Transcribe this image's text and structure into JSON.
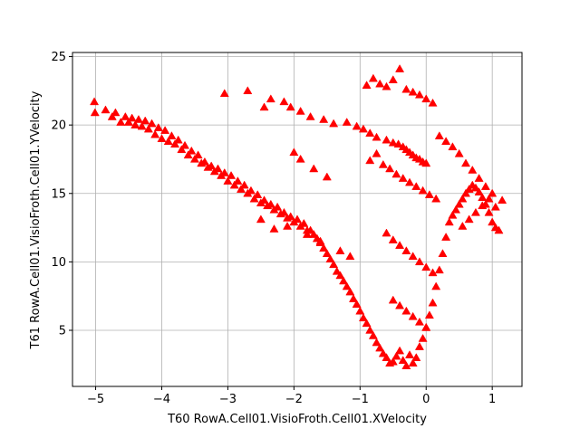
{
  "chart_data": {
    "type": "scatter",
    "title": "",
    "xlabel": "T60 RowA.Cell01.VisioFroth.Cell01.XVelocity",
    "ylabel": "T61 RowA.Cell01.VisioFroth.Cell01.YVelocity",
    "xlim": [
      -5.35,
      1.45
    ],
    "ylim": [
      0.9,
      25.3
    ],
    "xticks": [
      -5,
      -4,
      -3,
      -2,
      -1,
      0,
      1
    ],
    "xtick_labels": [
      "−5",
      "−4",
      "−3",
      "−2",
      "−1",
      "0",
      "1"
    ],
    "yticks": [
      5,
      10,
      15,
      20,
      25
    ],
    "ytick_labels": [
      "5",
      "10",
      "15",
      "20",
      "25"
    ],
    "grid": true,
    "legend": "none",
    "marker": "triangle-up",
    "color": "#ff0000",
    "series": [
      {
        "x": [
          -5.02,
          -5.01,
          -4.85,
          -4.75,
          -4.7,
          -4.62,
          -4.55,
          -4.5,
          -4.45,
          -4.4,
          -4.35,
          -4.3,
          -4.25,
          -4.2,
          -4.15,
          -4.1,
          -4.05,
          -4.0,
          -3.95,
          -3.9,
          -3.85,
          -3.8,
          -3.75,
          -3.7,
          -3.65,
          -3.6,
          -3.55,
          -3.5,
          -3.45,
          -3.4,
          -3.35,
          -3.3,
          -3.25,
          -3.2,
          -3.15,
          -3.1,
          -3.05,
          -3.0,
          -2.95,
          -2.9,
          -2.85,
          -2.8,
          -2.75,
          -2.7,
          -2.65,
          -2.6,
          -2.55,
          -2.5,
          -2.45,
          -2.4,
          -2.35,
          -2.3,
          -2.25,
          -2.2,
          -2.15,
          -2.1,
          -2.05,
          -2.0,
          -1.95,
          -1.9,
          -1.85,
          -1.8,
          -1.75,
          -1.7,
          -1.65,
          -1.6,
          -1.55,
          -1.5,
          -1.45,
          -1.4,
          -1.35,
          -1.3,
          -1.25,
          -1.2,
          -1.15,
          -1.1,
          -1.05,
          -1.0,
          -0.95,
          -0.9,
          -0.85,
          -0.8,
          -0.75,
          -0.7,
          -0.65,
          -0.6,
          -0.55,
          -0.5,
          -0.45,
          -0.4,
          -0.35,
          -0.3,
          -0.25,
          -0.2,
          -0.15,
          -0.1,
          -0.05,
          0.0,
          0.05,
          0.1,
          0.15,
          0.2,
          0.25,
          0.3,
          0.35,
          0.4,
          0.45,
          0.5,
          0.55,
          0.6,
          0.65,
          0.7,
          0.75,
          0.8,
          0.85,
          0.9,
          0.95,
          1.0,
          1.05,
          1.1,
          1.15,
          -3.05,
          -2.7,
          -2.45,
          -2.35,
          -2.15,
          -2.05,
          -1.9,
          -1.75,
          -1.55,
          -1.4,
          -1.2,
          -1.05,
          -0.95,
          -0.85,
          -0.75,
          -0.6,
          -0.5,
          -0.42,
          -0.35,
          -0.3,
          -0.25,
          -0.2,
          -0.15,
          -0.1,
          -0.05,
          0.0,
          -0.9,
          -0.8,
          -0.7,
          -0.6,
          -0.5,
          -0.4,
          -0.3,
          -0.2,
          -0.1,
          0.0,
          0.1,
          -0.85,
          -0.75,
          -0.65,
          -0.55,
          -0.45,
          -0.35,
          -0.25,
          -0.15,
          -0.05,
          0.05,
          0.15,
          -0.6,
          -0.5,
          -0.4,
          -0.3,
          -0.2,
          -0.1,
          0.0,
          0.1,
          -0.5,
          -0.4,
          -0.3,
          -0.2,
          -0.1,
          0.0,
          0.2,
          0.3,
          0.4,
          0.5,
          0.6,
          0.7,
          0.8,
          0.9,
          1.0,
          0.55,
          0.65,
          0.75,
          0.85,
          0.95,
          1.05,
          -2.5,
          -2.3,
          -2.1,
          -1.8,
          -1.6,
          -1.3,
          -1.15,
          -2.0,
          -1.9,
          -1.7,
          -1.5
        ],
        "y": [
          21.7,
          20.9,
          21.1,
          20.6,
          20.9,
          20.2,
          20.6,
          20.2,
          20.5,
          20.0,
          20.4,
          19.9,
          20.3,
          19.7,
          20.1,
          19.3,
          19.8,
          19.0,
          19.6,
          18.8,
          19.2,
          18.6,
          18.9,
          18.2,
          18.5,
          17.8,
          18.1,
          17.5,
          17.8,
          17.2,
          17.3,
          16.9,
          17.0,
          16.6,
          16.8,
          16.3,
          16.5,
          15.9,
          16.3,
          15.6,
          15.9,
          15.3,
          15.6,
          15.0,
          15.2,
          14.6,
          14.9,
          14.3,
          14.5,
          14.1,
          14.2,
          13.8,
          14.0,
          13.5,
          13.6,
          13.2,
          13.3,
          12.9,
          13.1,
          12.6,
          12.8,
          12.3,
          12.3,
          12.0,
          11.7,
          11.4,
          11.0,
          10.6,
          10.2,
          9.8,
          9.3,
          9.0,
          8.6,
          8.2,
          7.8,
          7.3,
          6.9,
          6.4,
          5.9,
          5.5,
          5.0,
          4.6,
          4.1,
          3.7,
          3.3,
          3.0,
          2.6,
          2.7,
          3.1,
          3.5,
          2.8,
          2.4,
          3.2,
          2.6,
          3.0,
          3.8,
          4.4,
          5.2,
          6.1,
          7.0,
          8.2,
          9.4,
          10.6,
          11.8,
          12.9,
          13.4,
          13.8,
          14.2,
          14.6,
          15.0,
          15.3,
          15.6,
          15.4,
          15.1,
          14.7,
          14.2,
          13.6,
          12.9,
          12.5,
          12.3,
          14.5,
          22.3,
          22.5,
          21.3,
          21.9,
          21.7,
          21.3,
          21.0,
          20.6,
          20.4,
          20.1,
          20.2,
          19.9,
          19.7,
          19.4,
          19.1,
          18.9,
          18.7,
          18.6,
          18.4,
          18.2,
          18.0,
          17.8,
          17.6,
          17.5,
          17.3,
          17.2,
          22.9,
          23.4,
          23.0,
          22.8,
          23.3,
          24.1,
          22.6,
          22.4,
          22.2,
          21.9,
          21.6,
          17.4,
          17.9,
          17.1,
          16.8,
          16.4,
          16.1,
          15.8,
          15.5,
          15.2,
          14.9,
          14.6,
          12.1,
          11.6,
          11.2,
          10.8,
          10.4,
          10.0,
          9.6,
          9.2,
          7.2,
          6.8,
          6.4,
          6.0,
          5.6,
          5.2,
          19.2,
          18.8,
          18.4,
          17.9,
          17.2,
          16.7,
          16.1,
          15.5,
          15.0,
          12.6,
          13.1,
          13.6,
          14.1,
          14.6,
          14.0,
          13.1,
          12.4,
          12.6,
          12.0,
          11.5,
          10.8,
          10.4,
          18.0,
          17.5,
          16.8,
          16.2
        ]
      }
    ]
  }
}
